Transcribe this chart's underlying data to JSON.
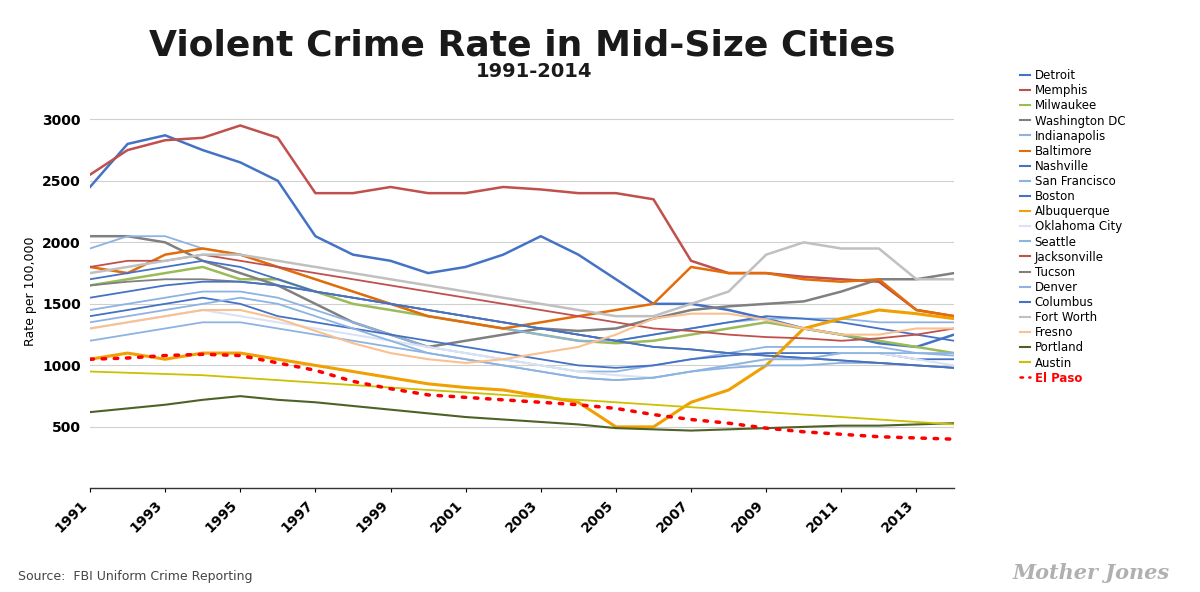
{
  "title": "Violent Crime Rate in Mid-Size Cities",
  "subtitle": "1991-2014",
  "ylabel": "Rate per 100,000",
  "source": "Source:  FBI Uniform Crime Reporting",
  "years": [
    1991,
    1992,
    1993,
    1994,
    1995,
    1996,
    1997,
    1998,
    1999,
    2000,
    2001,
    2002,
    2003,
    2004,
    2005,
    2006,
    2007,
    2008,
    2009,
    2010,
    2011,
    2012,
    2013,
    2014
  ],
  "cities": {
    "Detroit": {
      "color": "#4472C4",
      "lw": 1.8,
      "data": [
        2450,
        2800,
        2870,
        2750,
        2650,
        2500,
        2050,
        1900,
        1850,
        1750,
        1800,
        1900,
        2050,
        1900,
        1700,
        1500,
        1500,
        1450,
        1380,
        1300,
        1250,
        1180,
        1150,
        1250
      ]
    },
    "Memphis": {
      "color": "#C0504D",
      "lw": 1.8,
      "data": [
        2550,
        2750,
        2830,
        2850,
        2950,
        2850,
        2400,
        2400,
        2450,
        2400,
        2400,
        2450,
        2430,
        2400,
        2400,
        2350,
        1850,
        1750,
        1750,
        1720,
        1700,
        1680,
        1450,
        1400
      ]
    },
    "Milwaukee": {
      "color": "#9BBB59",
      "lw": 1.8,
      "data": [
        1650,
        1700,
        1750,
        1800,
        1700,
        1700,
        1600,
        1500,
        1450,
        1400,
        1350,
        1300,
        1250,
        1200,
        1180,
        1200,
        1250,
        1300,
        1350,
        1300,
        1250,
        1200,
        1150,
        1100
      ]
    },
    "Washington DC": {
      "color": "#808080",
      "lw": 1.8,
      "data": [
        2050,
        2050,
        2000,
        1850,
        1750,
        1650,
        1500,
        1350,
        1250,
        1150,
        1200,
        1250,
        1300,
        1280,
        1300,
        1380,
        1450,
        1480,
        1500,
        1520,
        1600,
        1700,
        1700,
        1750
      ]
    },
    "Indianapolis": {
      "color": "#8DB3E2",
      "lw": 1.3,
      "data": [
        1950,
        2050,
        2050,
        1950,
        1900,
        1800,
        1700,
        1600,
        1500,
        1400,
        1350,
        1300,
        1250,
        1200,
        1200,
        1250,
        1300,
        1350,
        1380,
        1380,
        1380,
        1350,
        1350,
        1350
      ]
    },
    "Baltimore": {
      "color": "#E36C09",
      "lw": 1.8,
      "data": [
        1800,
        1750,
        1900,
        1950,
        1900,
        1800,
        1700,
        1600,
        1500,
        1400,
        1350,
        1300,
        1350,
        1400,
        1450,
        1500,
        1800,
        1750,
        1750,
        1700,
        1680,
        1700,
        1450,
        1400
      ]
    },
    "Nashville": {
      "color": "#4472C4",
      "lw": 1.3,
      "data": [
        1700,
        1750,
        1800,
        1850,
        1800,
        1700,
        1600,
        1550,
        1500,
        1450,
        1400,
        1350,
        1300,
        1250,
        1200,
        1250,
        1300,
        1350,
        1400,
        1380,
        1350,
        1300,
        1250,
        1200
      ]
    },
    "San Francisco": {
      "color": "#8DB3E2",
      "lw": 1.3,
      "data": [
        1450,
        1500,
        1550,
        1600,
        1600,
        1550,
        1450,
        1350,
        1250,
        1150,
        1100,
        1050,
        1000,
        950,
        950,
        1000,
        1050,
        1100,
        1150,
        1150,
        1150,
        1150,
        1100,
        1080
      ]
    },
    "Boston": {
      "color": "#4472C4",
      "lw": 1.3,
      "data": [
        1400,
        1450,
        1500,
        1550,
        1500,
        1400,
        1350,
        1300,
        1250,
        1200,
        1150,
        1100,
        1050,
        1000,
        980,
        1000,
        1050,
        1080,
        1100,
        1100,
        1100,
        1100,
        1050,
        1050
      ]
    },
    "Albuquerque": {
      "color": "#F0A000",
      "lw": 2.2,
      "data": [
        1050,
        1100,
        1050,
        1100,
        1100,
        1050,
        1000,
        950,
        900,
        850,
        820,
        800,
        750,
        700,
        500,
        500,
        700,
        800,
        1000,
        1300,
        1380,
        1450,
        1420,
        1380
      ]
    },
    "Oklahoma City": {
      "color": "#DAE3F3",
      "lw": 1.5,
      "data": [
        1300,
        1350,
        1400,
        1450,
        1400,
        1350,
        1300,
        1250,
        1200,
        1150,
        1100,
        1050,
        1000,
        950,
        920,
        900,
        950,
        1000,
        1050,
        1050,
        1100,
        1100,
        1050,
        1000
      ]
    },
    "Seattle": {
      "color": "#8DB3E2",
      "lw": 1.3,
      "data": [
        1200,
        1250,
        1300,
        1350,
        1350,
        1300,
        1250,
        1200,
        1150,
        1100,
        1050,
        1000,
        950,
        900,
        880,
        900,
        950,
        980,
        1000,
        1000,
        1020,
        1020,
        1000,
        980
      ]
    },
    "Jacksonville": {
      "color": "#C0504D",
      "lw": 1.3,
      "data": [
        1800,
        1850,
        1850,
        1900,
        1850,
        1800,
        1750,
        1700,
        1650,
        1600,
        1550,
        1500,
        1450,
        1400,
        1350,
        1300,
        1280,
        1250,
        1230,
        1220,
        1200,
        1220,
        1250,
        1300
      ]
    },
    "Tucson": {
      "color": "#808080",
      "lw": 1.3,
      "data": [
        1650,
        1680,
        1700,
        1700,
        1680,
        1650,
        1600,
        1550,
        1500,
        1450,
        1400,
        1350,
        1300,
        1250,
        1200,
        1150,
        1130,
        1100,
        1080,
        1060,
        1040,
        1020,
        1000,
        980
      ]
    },
    "Denver": {
      "color": "#8DB3E2",
      "lw": 1.3,
      "data": [
        1350,
        1400,
        1450,
        1500,
        1550,
        1500,
        1400,
        1300,
        1200,
        1100,
        1050,
        1000,
        950,
        900,
        880,
        900,
        950,
        1000,
        1050,
        1050,
        1100,
        1100,
        1100,
        1100
      ]
    },
    "Columbus": {
      "color": "#4472C4",
      "lw": 1.3,
      "data": [
        1550,
        1600,
        1650,
        1680,
        1680,
        1650,
        1600,
        1550,
        1500,
        1450,
        1400,
        1350,
        1300,
        1250,
        1200,
        1150,
        1130,
        1100,
        1080,
        1060,
        1040,
        1020,
        1000,
        980
      ]
    },
    "Fort Worth": {
      "color": "#C0C0C0",
      "lw": 1.8,
      "data": [
        1750,
        1800,
        1850,
        1900,
        1900,
        1850,
        1800,
        1750,
        1700,
        1650,
        1600,
        1550,
        1500,
        1450,
        1400,
        1400,
        1500,
        1600,
        1900,
        2000,
        1950,
        1950,
        1700,
        1700
      ]
    },
    "Fresno": {
      "color": "#FAC090",
      "lw": 1.5,
      "data": [
        1300,
        1350,
        1400,
        1450,
        1450,
        1380,
        1280,
        1180,
        1100,
        1050,
        1020,
        1050,
        1100,
        1150,
        1250,
        1380,
        1420,
        1420,
        1370,
        1300,
        1250,
        1250,
        1300,
        1300
      ]
    },
    "Portland": {
      "color": "#4E6228",
      "lw": 1.5,
      "data": [
        620,
        650,
        680,
        720,
        750,
        720,
        700,
        670,
        640,
        610,
        580,
        560,
        540,
        520,
        490,
        480,
        470,
        480,
        490,
        500,
        510,
        510,
        520,
        530
      ]
    },
    "Austin": {
      "color": "#CCC000",
      "lw": 1.3,
      "data": [
        950,
        940,
        930,
        920,
        900,
        880,
        860,
        840,
        820,
        800,
        780,
        760,
        740,
        720,
        700,
        680,
        660,
        640,
        620,
        600,
        580,
        560,
        540,
        520
      ]
    },
    "El Paso": {
      "color": "#FF0000",
      "lw": 2.5,
      "data": [
        1050,
        1060,
        1080,
        1090,
        1080,
        1020,
        960,
        870,
        810,
        760,
        740,
        720,
        700,
        680,
        650,
        600,
        560,
        530,
        490,
        460,
        440,
        420,
        410,
        400
      ],
      "dotted": true
    }
  },
  "ylim": [
    0,
    3200
  ],
  "yticks": [
    0,
    500,
    1000,
    1500,
    2000,
    2500,
    3000
  ],
  "background_color": "#FFFFFF",
  "title_fontsize": 26,
  "subtitle_fontsize": 14,
  "legend_fontsize": 8.5
}
